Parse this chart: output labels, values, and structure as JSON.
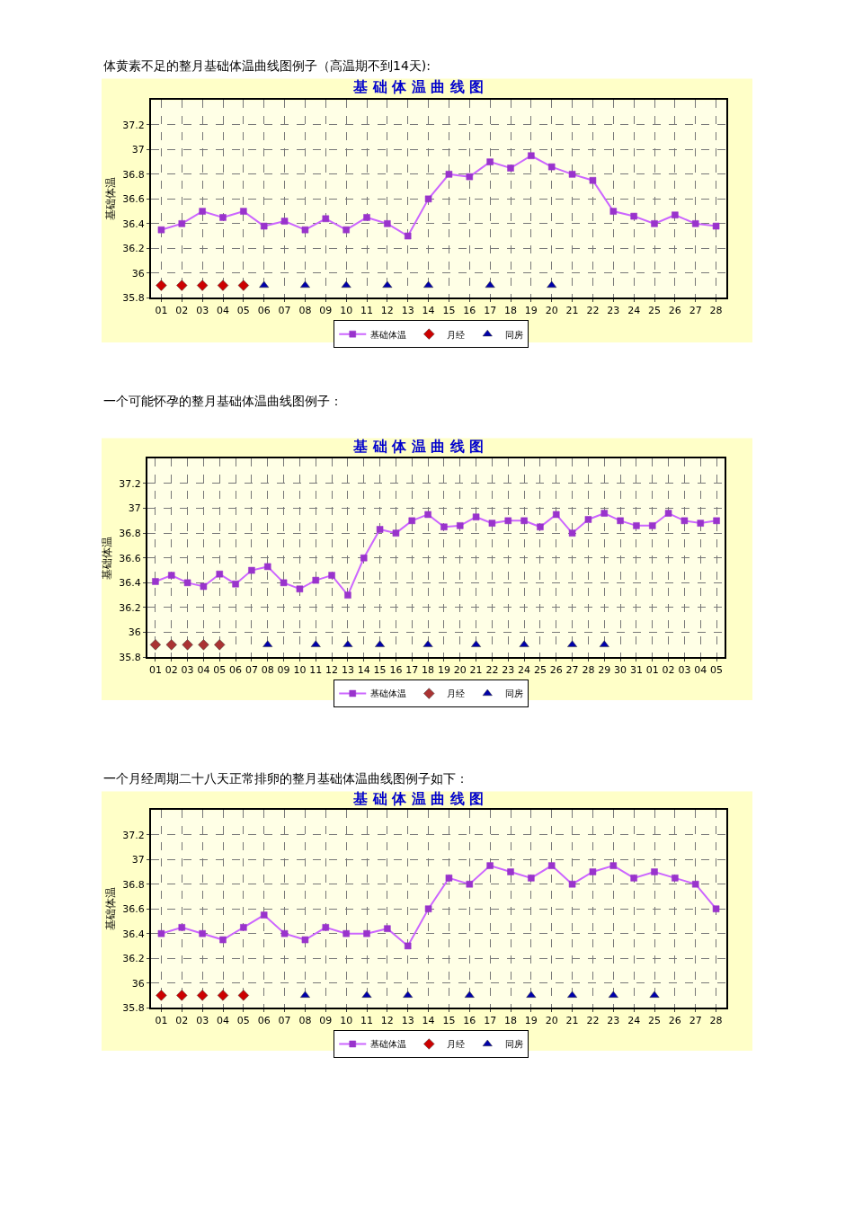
{
  "chart_data": [
    {
      "type": "line",
      "title": "基 础 体 温 曲 线 图",
      "annotations": [
        "体黄素不足的整月基础体温曲线图例子（高温期不到14天):"
      ],
      "ylabel": "基础体温",
      "categories": [
        "01",
        "02",
        "03",
        "04",
        "05",
        "06",
        "07",
        "08",
        "09",
        "10",
        "11",
        "12",
        "13",
        "14",
        "15",
        "16",
        "17",
        "18",
        "19",
        "20",
        "21",
        "22",
        "23",
        "24",
        "25",
        "26",
        "27",
        "28"
      ],
      "ylim": [
        35.8,
        37.4
      ],
      "yticks": [
        {
          "value": 35.8,
          "label": "35.8"
        },
        36,
        {
          "value": 36.2,
          "label": "36.2"
        },
        {
          "value": 36.4,
          "label": "36.4"
        },
        {
          "value": 36.6,
          "label": "36.6"
        },
        {
          "value": 36.8,
          "label": "36.8"
        },
        37,
        {
          "value": 37.2,
          "label": "37.2"
        }
      ],
      "grid": true,
      "legend": "bottom",
      "series": [
        {
          "name": "基础体温",
          "marker": "square",
          "color": "#cc66ff",
          "values": [
            36.35,
            36.4,
            36.5,
            36.45,
            36.5,
            36.38,
            36.42,
            36.35,
            36.44,
            36.35,
            36.45,
            36.4,
            36.3,
            36.6,
            36.8,
            36.78,
            36.9,
            36.85,
            36.95,
            36.86,
            36.8,
            36.75,
            36.5,
            36.46,
            36.4,
            36.47,
            36.4,
            36.38
          ]
        },
        {
          "name": "月经",
          "type": "scatter",
          "marker": "diamond",
          "color": "#cc0000",
          "values": [
            35.9,
            35.9,
            35.9,
            35.9,
            35.9,
            null,
            null,
            null,
            null,
            null,
            null,
            null,
            null,
            null,
            null,
            null,
            null,
            null,
            null,
            null,
            null,
            null,
            null,
            null,
            null,
            null,
            null,
            null
          ]
        },
        {
          "name": "同房",
          "type": "scatter",
          "marker": "triangle",
          "color": "#0000aa",
          "values": [
            null,
            null,
            null,
            null,
            null,
            35.9,
            null,
            35.9,
            null,
            35.9,
            null,
            35.9,
            null,
            35.9,
            null,
            null,
            35.9,
            null,
            null,
            35.9,
            null,
            null,
            null,
            null,
            null,
            null,
            null,
            null
          ]
        }
      ]
    },
    {
      "type": "line",
      "title": "基 础 体 温 曲 线 图",
      "annotations": [
        "一个可能怀孕的整月基础体温曲线图例子："
      ],
      "ylabel": "基础体温",
      "categories": [
        "01",
        "02",
        "03",
        "04",
        "05",
        "06",
        "07",
        "08",
        "09",
        "10",
        "11",
        "12",
        "13",
        "14",
        "15",
        "16",
        "17",
        "18",
        "19",
        "20",
        "21",
        "22",
        "23",
        "24",
        "25",
        "26",
        "27",
        "28",
        "29",
        "30",
        "31",
        "01",
        "02",
        "03",
        "04",
        "05"
      ],
      "ylim": [
        35.8,
        37.4
      ],
      "yticks": [
        {
          "value": 35.8,
          "label": "35.8"
        },
        36,
        {
          "value": 36.2,
          "label": "36.2"
        },
        {
          "value": 36.4,
          "label": "36.4"
        },
        {
          "value": 36.6,
          "label": "36.6"
        },
        {
          "value": 36.8,
          "label": "36.8"
        },
        37,
        {
          "value": 37.2,
          "label": "37.2"
        }
      ],
      "grid": true,
      "legend": "bottom",
      "series": [
        {
          "name": "基础体温",
          "marker": "square",
          "color": "#cc66ff",
          "values": [
            36.41,
            36.46,
            36.4,
            36.37,
            36.47,
            36.39,
            36.5,
            36.53,
            36.4,
            36.35,
            36.42,
            36.46,
            36.3,
            36.6,
            36.83,
            36.8,
            36.9,
            36.95,
            36.85,
            36.86,
            36.93,
            36.88,
            36.9,
            36.9,
            36.85,
            36.95,
            36.8,
            36.91,
            36.96,
            36.9,
            36.86,
            36.86,
            36.96,
            36.9,
            36.88,
            36.9
          ]
        },
        {
          "name": "月经",
          "type": "scatter",
          "marker": "diamond",
          "color": "#aa3333",
          "values": [
            35.9,
            35.9,
            35.9,
            35.9,
            35.9,
            null,
            null,
            null,
            null,
            null,
            null,
            null,
            null,
            null,
            null,
            null,
            null,
            null,
            null,
            null,
            null,
            null,
            null,
            null,
            null,
            null,
            null,
            null,
            null,
            null,
            null,
            null,
            null,
            null,
            null,
            null
          ]
        },
        {
          "name": "同房",
          "type": "scatter",
          "marker": "triangle",
          "color": "#0000aa",
          "values": [
            null,
            null,
            null,
            null,
            null,
            null,
            null,
            35.9,
            null,
            null,
            35.9,
            null,
            35.9,
            null,
            35.9,
            null,
            null,
            35.9,
            null,
            null,
            35.9,
            null,
            null,
            35.9,
            null,
            null,
            35.9,
            null,
            35.9,
            null,
            null,
            null,
            null,
            null,
            null,
            null
          ]
        }
      ]
    },
    {
      "type": "line",
      "title": "基 础 体 温 曲 线 图",
      "annotations": [
        "一个月经周期二十八天正常排卵的整月基础体温曲线图例子如下："
      ],
      "ylabel": "基础体温",
      "categories": [
        "01",
        "02",
        "03",
        "04",
        "05",
        "06",
        "07",
        "08",
        "09",
        "10",
        "11",
        "12",
        "13",
        "14",
        "15",
        "16",
        "17",
        "18",
        "19",
        "20",
        "21",
        "22",
        "23",
        "24",
        "25",
        "26",
        "27",
        "28"
      ],
      "ylim": [
        35.8,
        37.4
      ],
      "yticks": [
        {
          "value": 35.8,
          "label": "35.8"
        },
        36,
        {
          "value": 36.2,
          "label": "36.2"
        },
        {
          "value": 36.4,
          "label": "36.4"
        },
        {
          "value": 36.6,
          "label": "36.6"
        },
        {
          "value": 36.8,
          "label": "36.8"
        },
        37,
        {
          "value": 37.2,
          "label": "37.2"
        }
      ],
      "grid": true,
      "legend": "bottom",
      "series": [
        {
          "name": "基础体温",
          "marker": "square",
          "color": "#cc66ff",
          "values": [
            36.4,
            36.45,
            36.4,
            36.35,
            36.45,
            36.55,
            36.4,
            36.35,
            36.45,
            36.4,
            36.4,
            36.44,
            36.3,
            36.6,
            36.85,
            36.8,
            36.95,
            36.9,
            36.85,
            36.95,
            36.8,
            36.9,
            36.95,
            36.85,
            36.9,
            36.85,
            36.8,
            36.6
          ]
        },
        {
          "name": "月经",
          "type": "scatter",
          "marker": "diamond",
          "color": "#cc0000",
          "values": [
            35.9,
            35.9,
            35.9,
            35.9,
            35.9,
            null,
            null,
            null,
            null,
            null,
            null,
            null,
            null,
            null,
            null,
            null,
            null,
            null,
            null,
            null,
            null,
            null,
            null,
            null,
            null,
            null,
            null,
            null
          ]
        },
        {
          "name": "同房",
          "type": "scatter",
          "marker": "triangle",
          "color": "#0000aa",
          "values": [
            null,
            null,
            null,
            null,
            null,
            null,
            null,
            35.9,
            null,
            null,
            35.9,
            null,
            35.9,
            null,
            null,
            35.9,
            null,
            null,
            35.9,
            null,
            35.9,
            null,
            35.9,
            null,
            35.9,
            null,
            null,
            null
          ]
        }
      ]
    }
  ]
}
